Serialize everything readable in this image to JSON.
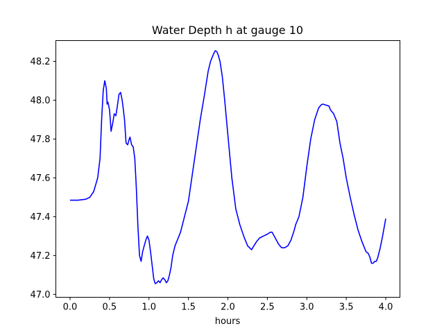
{
  "chart_data": {
    "type": "line",
    "title": "Water Depth h at gauge 10",
    "xlabel": "hours",
    "ylabel": "",
    "xlim": [
      -0.18,
      4.18
    ],
    "ylim": [
      46.985,
      48.307
    ],
    "xticks": [
      0.0,
      0.5,
      1.0,
      1.5,
      2.0,
      2.5,
      3.0,
      3.5,
      4.0
    ],
    "xtick_labels": [
      "0.0",
      "0.5",
      "1.0",
      "1.5",
      "2.0",
      "2.5",
      "3.0",
      "3.5",
      "4.0"
    ],
    "yticks": [
      47.0,
      47.2,
      47.4,
      47.6,
      47.8,
      48.0,
      48.2
    ],
    "ytick_labels": [
      "47.0",
      "47.2",
      "47.4",
      "47.6",
      "47.8",
      "48.0",
      "48.2"
    ],
    "grid": false,
    "series": [
      {
        "color": "#0000ff",
        "x": [
          0.0,
          0.1,
          0.2,
          0.25,
          0.3,
          0.35,
          0.38,
          0.4,
          0.42,
          0.44,
          0.46,
          0.47,
          0.48,
          0.5,
          0.51,
          0.52,
          0.54,
          0.56,
          0.58,
          0.6,
          0.62,
          0.64,
          0.66,
          0.67,
          0.69,
          0.71,
          0.73,
          0.75,
          0.76,
          0.78,
          0.8,
          0.82,
          0.84,
          0.86,
          0.88,
          0.9,
          0.92,
          0.94,
          0.96,
          0.98,
          1.0,
          1.02,
          1.04,
          1.06,
          1.08,
          1.1,
          1.12,
          1.14,
          1.16,
          1.18,
          1.2,
          1.22,
          1.24,
          1.26,
          1.28,
          1.3,
          1.33,
          1.36,
          1.4,
          1.45,
          1.5,
          1.55,
          1.6,
          1.65,
          1.7,
          1.75,
          1.78,
          1.82,
          1.84,
          1.86,
          1.88,
          1.9,
          1.93,
          1.96,
          2.0,
          2.05,
          2.1,
          2.15,
          2.2,
          2.25,
          2.3,
          2.33,
          2.36,
          2.4,
          2.45,
          2.5,
          2.54,
          2.56,
          2.6,
          2.64,
          2.68,
          2.72,
          2.76,
          2.8,
          2.84,
          2.86,
          2.9,
          2.95,
          3.0,
          3.05,
          3.1,
          3.15,
          3.18,
          3.2,
          3.24,
          3.28,
          3.3,
          3.32,
          3.34,
          3.38,
          3.42,
          3.46,
          3.5,
          3.55,
          3.6,
          3.65,
          3.7,
          3.75,
          3.78,
          3.8,
          3.82,
          3.84,
          3.86,
          3.88,
          3.9,
          3.93,
          3.96,
          4.0
        ],
        "y": [
          47.485,
          47.485,
          47.49,
          47.5,
          47.53,
          47.6,
          47.7,
          47.9,
          48.05,
          48.1,
          48.06,
          47.98,
          47.99,
          47.95,
          47.9,
          47.84,
          47.88,
          47.93,
          47.92,
          47.97,
          48.03,
          48.04,
          48.0,
          47.97,
          47.9,
          47.78,
          47.77,
          47.8,
          47.81,
          47.77,
          47.76,
          47.7,
          47.55,
          47.35,
          47.2,
          47.17,
          47.22,
          47.25,
          47.28,
          47.3,
          47.28,
          47.22,
          47.15,
          47.08,
          47.055,
          47.06,
          47.07,
          47.06,
          47.075,
          47.085,
          47.075,
          47.06,
          47.07,
          47.1,
          47.14,
          47.2,
          47.25,
          47.28,
          47.32,
          47.4,
          47.48,
          47.62,
          47.76,
          47.9,
          48.02,
          48.15,
          48.2,
          48.24,
          48.255,
          48.25,
          48.23,
          48.2,
          48.12,
          48.0,
          47.82,
          47.6,
          47.44,
          47.36,
          47.3,
          47.25,
          47.23,
          47.25,
          47.27,
          47.29,
          47.3,
          47.31,
          47.32,
          47.32,
          47.29,
          47.26,
          47.24,
          47.24,
          47.25,
          47.28,
          47.33,
          47.36,
          47.4,
          47.5,
          47.66,
          47.8,
          47.9,
          47.96,
          47.975,
          47.98,
          47.975,
          47.97,
          47.95,
          47.94,
          47.93,
          47.89,
          47.78,
          47.7,
          47.6,
          47.5,
          47.41,
          47.33,
          47.27,
          47.22,
          47.21,
          47.19,
          47.16,
          47.16,
          47.17,
          47.17,
          47.19,
          47.24,
          47.3,
          47.39
        ]
      }
    ]
  }
}
